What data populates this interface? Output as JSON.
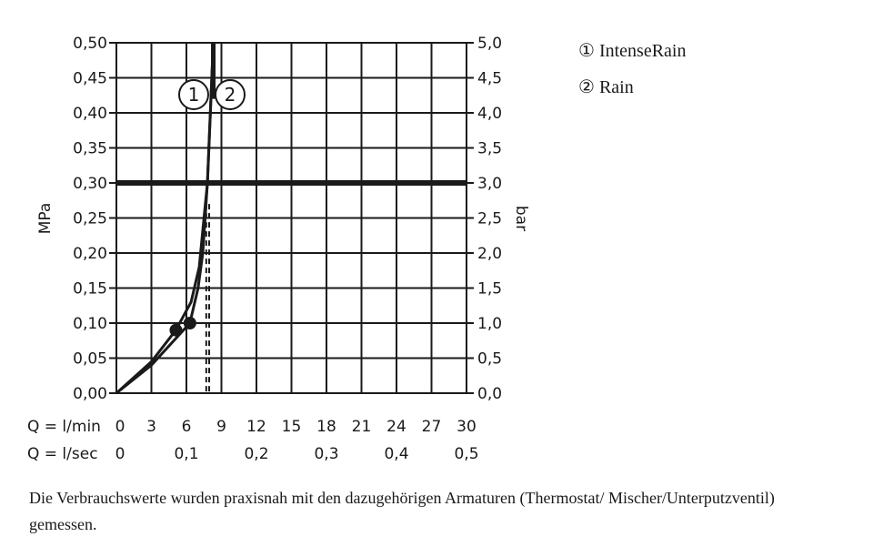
{
  "chart_data": {
    "type": "line",
    "xlabel": "Q = l/min",
    "xlabel2": "Q = l/sec",
    "ylabel_left": "MPa",
    "ylabel_right": "bar",
    "xlim": [
      0,
      30
    ],
    "ylim": [
      0,
      0.5
    ],
    "x_ticks": [
      "0",
      "3",
      "6",
      "9",
      "12",
      "15",
      "18",
      "21",
      "24",
      "27",
      "30"
    ],
    "x_ticks_lsec": [
      {
        "at": 0,
        "label": "0"
      },
      {
        "at": 6,
        "label": "0,1"
      },
      {
        "at": 12,
        "label": "0,2"
      },
      {
        "at": 18,
        "label": "0,3"
      },
      {
        "at": 24,
        "label": "0,4"
      },
      {
        "at": 30,
        "label": "0,5"
      }
    ],
    "y_ticks_left": [
      "0,00",
      "0,05",
      "0,10",
      "0,15",
      "0,20",
      "0,25",
      "0,30",
      "0,35",
      "0,40",
      "0,45",
      "0,50"
    ],
    "y_ticks_right": [
      "0,0",
      "0,5",
      "1,0",
      "1,5",
      "2,0",
      "2,5",
      "3,0",
      "3,5",
      "4,0",
      "4,5",
      "5,0"
    ],
    "grid": true,
    "reference_line_y": 0.3,
    "series": [
      {
        "name": "IntenseRain",
        "label": "1",
        "marker": [
          5.1,
          0.09
        ],
        "x": [
          0,
          3,
          5.1,
          6.4,
          7.1,
          7.5,
          7.8,
          8.05,
          8.3
        ],
        "y": [
          0,
          0.045,
          0.09,
          0.13,
          0.18,
          0.25,
          0.3,
          0.4,
          0.5
        ],
        "dashed_at": 7.7
      },
      {
        "name": "Rain",
        "label": "2",
        "marker": [
          6.3,
          0.1
        ],
        "x": [
          0,
          3,
          6.3,
          7.0,
          7.4,
          7.8,
          8.05,
          8.3
        ],
        "y": [
          0,
          0.04,
          0.1,
          0.15,
          0.2,
          0.3,
          0.4,
          0.5
        ],
        "dashed_at": 7.95
      }
    ],
    "dashed_top": 0.27
  },
  "legend": [
    {
      "symbol": "①",
      "text": "IntenseRain"
    },
    {
      "symbol": "②",
      "text": "Rain"
    }
  ],
  "note": "Die Verbrauchswerte wurden praxisnah mit den dazugehörigen Armaturen (Thermostat/ Mischer/Unterputzventil) gemessen."
}
